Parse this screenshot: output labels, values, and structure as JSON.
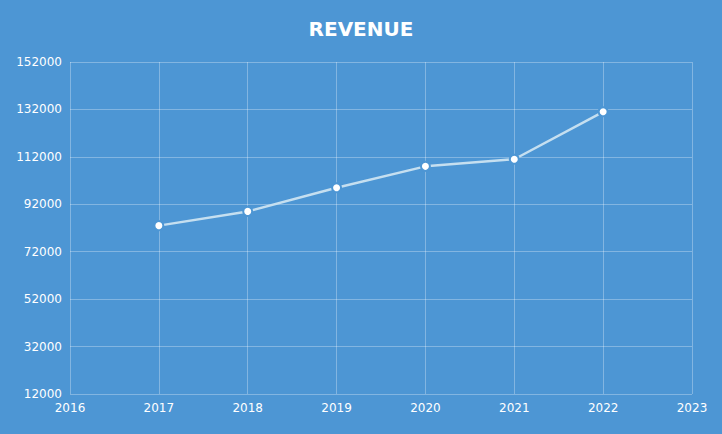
{
  "chart_data": {
    "type": "line",
    "title": "REVENUE",
    "x": [
      2017,
      2018,
      2019,
      2020,
      2021,
      2022
    ],
    "values": [
      83000,
      89000,
      99000,
      108000,
      111000,
      131000
    ],
    "xlim": [
      2016,
      2023
    ],
    "ylim": [
      12000,
      152000
    ],
    "xticks": [
      2016,
      2017,
      2018,
      2019,
      2020,
      2021,
      2022,
      2023
    ],
    "yticks": [
      12000,
      32000,
      52000,
      72000,
      92000,
      112000,
      132000,
      152000
    ],
    "color": "#C5DFF0",
    "marker": "circle",
    "grid": true
  }
}
